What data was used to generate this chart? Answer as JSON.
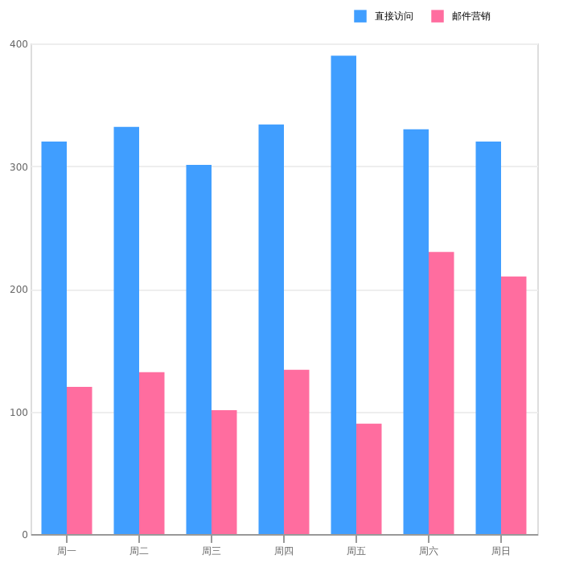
{
  "chart_data": {
    "type": "bar",
    "categories": [
      "周一",
      "周二",
      "周三",
      "周四",
      "周五",
      "周六",
      "周日"
    ],
    "series": [
      {
        "name": "直接访问",
        "color": "#409eff",
        "values": [
          320,
          332,
          301,
          334,
          390,
          330,
          320
        ]
      },
      {
        "name": "邮件营销",
        "color": "#ff6d9f",
        "values": [
          120,
          132,
          101,
          134,
          90,
          230,
          210
        ]
      }
    ],
    "ylim": [
      0,
      400
    ],
    "yticks": [
      0,
      100,
      200,
      300,
      400
    ],
    "grid": "y",
    "legend": "top right"
  }
}
